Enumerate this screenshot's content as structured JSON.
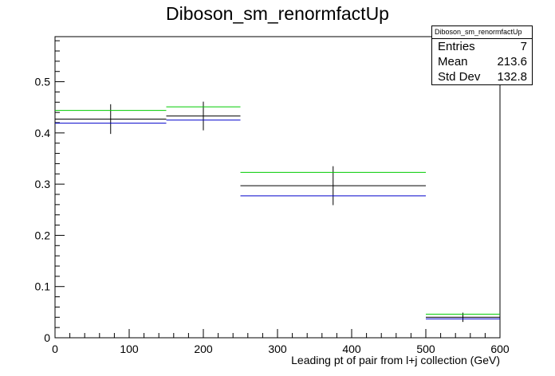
{
  "chart_data": {
    "type": "histogram",
    "title": "Diboson_sm_renormfactUp",
    "xlabel": "Leading pt of pair from l+j collection (GeV)",
    "ylabel": "",
    "xlim": [
      0,
      600
    ],
    "ylim": [
      0,
      0.588
    ],
    "x_ticks": [
      0,
      100,
      200,
      300,
      400,
      500,
      600
    ],
    "y_ticks": [
      0,
      0.1,
      0.2,
      0.3,
      0.4,
      0.5
    ],
    "x_tick_labels": [
      "0",
      "100",
      "200",
      "300",
      "400",
      "500",
      "600"
    ],
    "y_tick_labels": [
      "0",
      "0.1",
      "0.2",
      "0.3",
      "0.4",
      "0.5"
    ],
    "bins": [
      {
        "low": 0,
        "high": 150
      },
      {
        "low": 150,
        "high": 250
      },
      {
        "low": 250,
        "high": 500
      },
      {
        "low": 500,
        "high": 600
      }
    ],
    "series": [
      {
        "color": "#000000",
        "values": [
          0.427,
          0.433,
          0.297,
          0.04
        ],
        "errors": [
          0.029,
          0.028,
          0.038,
          0.009
        ]
      },
      {
        "color": "#00cc00",
        "values": [
          0.444,
          0.451,
          0.323,
          0.046
        ],
        "errors": [
          0,
          0,
          0,
          0
        ]
      },
      {
        "color": "#0000cc",
        "values": [
          0.419,
          0.425,
          0.277,
          0.037
        ],
        "errors": [
          0,
          0,
          0,
          0
        ]
      }
    ],
    "stats_box": {
      "name": "Diboson_sm_renormfactUp",
      "rows": [
        {
          "label": "Entries",
          "value": "7"
        },
        {
          "label": "Mean",
          "value": "213.6"
        },
        {
          "label": "Std Dev",
          "value": "132.8"
        }
      ]
    }
  }
}
